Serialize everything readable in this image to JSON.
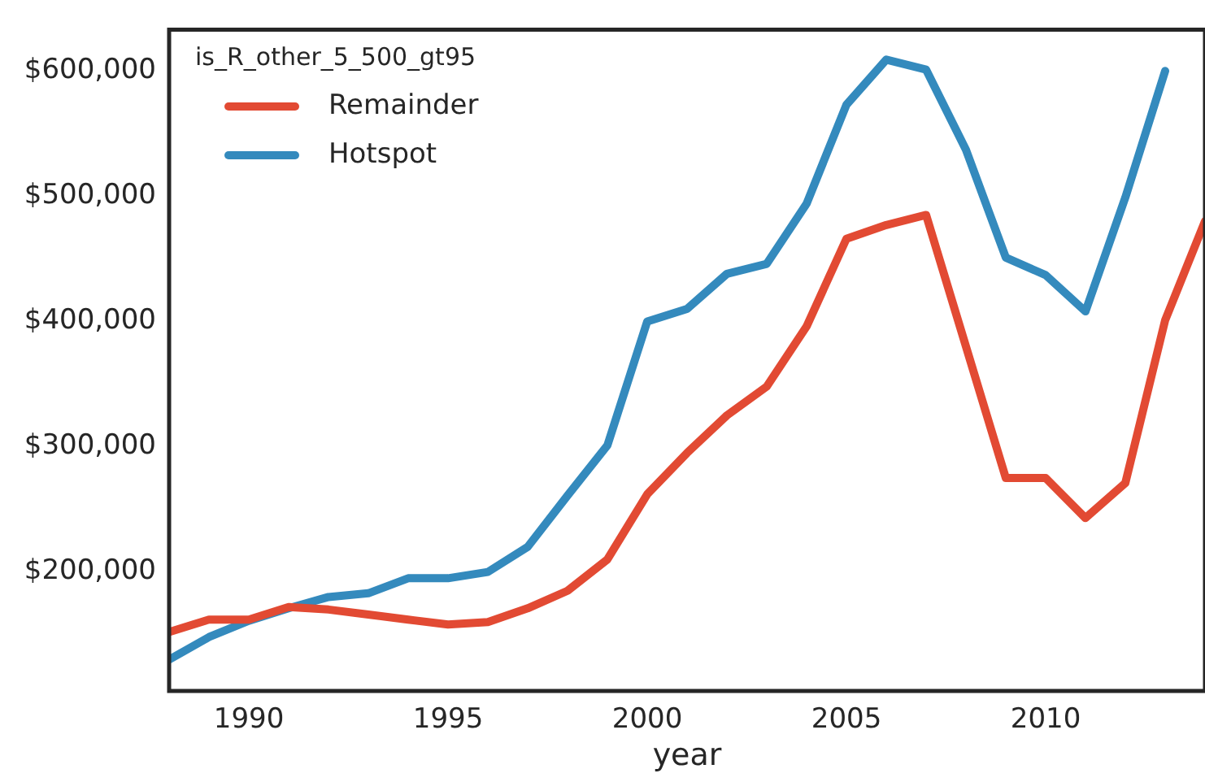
{
  "chart_data": {
    "type": "line",
    "xlabel": "year",
    "legend_title": "is_R_other_5_500_gt95",
    "legend": "top left",
    "grid": false,
    "line_style": "solid",
    "marker": "none",
    "x": [
      1988,
      1989,
      1990,
      1991,
      1992,
      1993,
      1994,
      1995,
      1996,
      1997,
      1998,
      1999,
      2000,
      2001,
      2002,
      2003,
      2004,
      2005,
      2006,
      2007,
      2008,
      2009,
      2010,
      2011,
      2012,
      2013,
      2014
    ],
    "xlim": [
      1988,
      2014
    ],
    "xticks": [
      1990,
      1995,
      2000,
      2005,
      2010
    ],
    "ylim": [
      105000,
      633000
    ],
    "yticks": [
      {
        "value": 200000,
        "label": "$200,000"
      },
      {
        "value": 300000,
        "label": "$300,000"
      },
      {
        "value": 400000,
        "label": "$400,000"
      },
      {
        "value": 500000,
        "label": "$500,000"
      },
      {
        "value": 600000,
        "label": "$600,000"
      }
    ],
    "series": [
      {
        "name": "Remainder",
        "color": "#e24a33",
        "values": [
          152000,
          162000,
          162000,
          172000,
          170000,
          166000,
          162000,
          158000,
          160000,
          171000,
          185000,
          210000,
          262000,
          295000,
          325000,
          348000,
          396000,
          466000,
          477000,
          485000,
          380000,
          275000,
          275000,
          243000,
          271000,
          401000,
          480000
        ]
      },
      {
        "name": "Hotspot",
        "color": "#348abd",
        "values": [
          130000,
          148000,
          161000,
          171000,
          180000,
          183000,
          195000,
          195000,
          200000,
          220000,
          261000,
          301000,
          400000,
          410000,
          438000,
          446000,
          494000,
          573000,
          609000,
          601000,
          537000,
          451000,
          437000,
          408000,
          499000,
          600000,
          null
        ]
      }
    ]
  }
}
